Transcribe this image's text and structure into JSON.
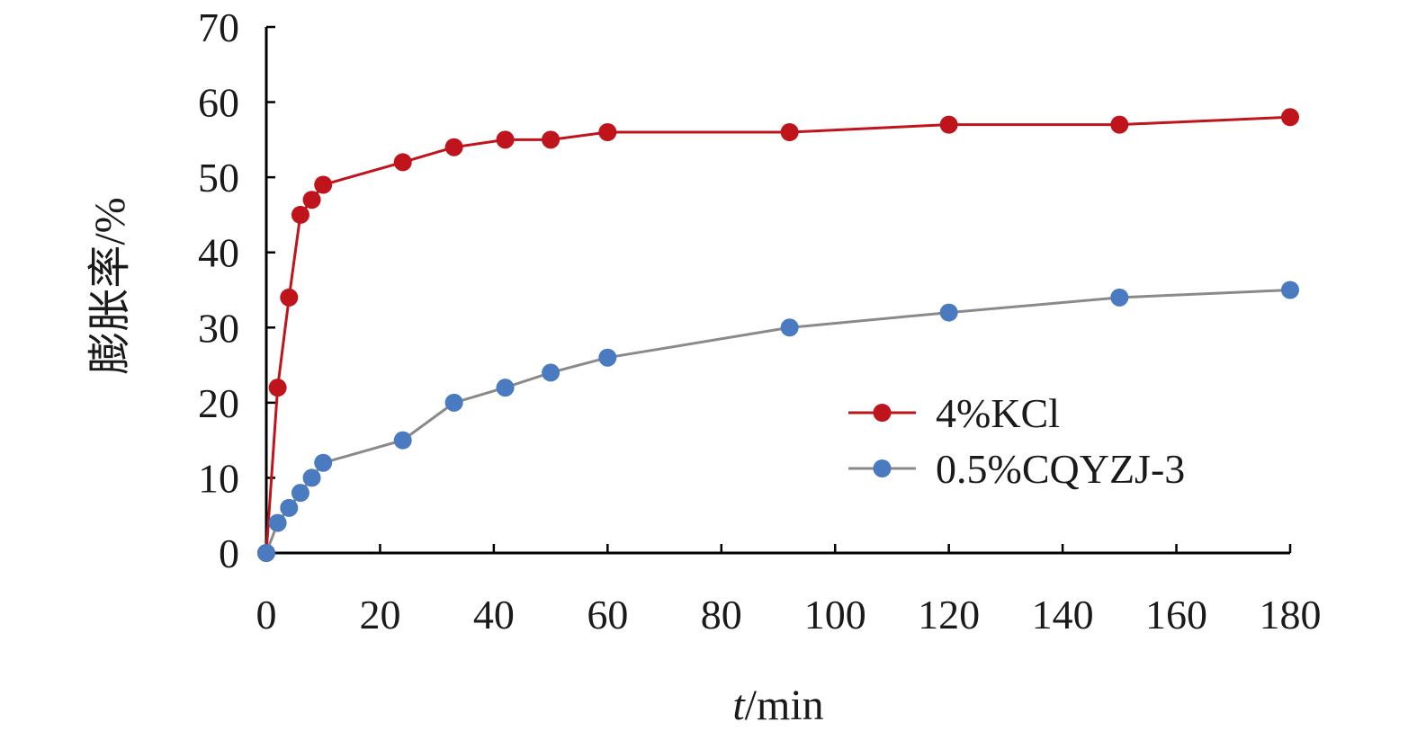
{
  "chart_data": {
    "type": "line",
    "xlabel_italic": "t",
    "xlabel_rest": "/min",
    "ylabel": "膨胀率/%",
    "xlim": [
      0,
      180
    ],
    "ylim": [
      0,
      70
    ],
    "xticks": [
      0,
      20,
      40,
      60,
      80,
      100,
      120,
      140,
      160,
      180
    ],
    "yticks": [
      0,
      10,
      20,
      30,
      40,
      50,
      60,
      70
    ],
    "grid": false,
    "legend_position": "center-right",
    "series": [
      {
        "name": "4%KCl",
        "color": "#c0141d",
        "x": [
          0,
          2,
          4,
          6,
          8,
          10,
          24,
          33,
          42,
          50,
          60,
          92,
          120,
          150,
          180
        ],
        "y": [
          0,
          22,
          34,
          45,
          47,
          49,
          52,
          54,
          55,
          55,
          56,
          56,
          57,
          57,
          58
        ]
      },
      {
        "name": "0.5%CQYZJ-3",
        "color": "#4a7ac0",
        "line_color": "#8a8a8a",
        "x": [
          0,
          2,
          4,
          6,
          8,
          10,
          24,
          33,
          42,
          50,
          60,
          92,
          120,
          150,
          180
        ],
        "y": [
          0,
          4,
          6,
          8,
          10,
          12,
          15,
          20,
          22,
          24,
          26,
          30,
          32,
          34,
          35
        ]
      }
    ]
  }
}
